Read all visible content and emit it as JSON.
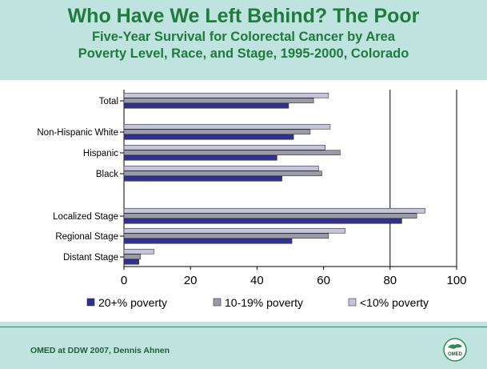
{
  "header": {
    "title": "Who Have We Left Behind?  The Poor",
    "subtitle_line1": "Five-Year Survival for Colorectal Cancer by Area",
    "subtitle_line2": "Poverty Level, Race, and Stage, 1995-2000, Colorado"
  },
  "footer": {
    "text": "OMED at DDW 2007, Dennis Ahnen",
    "logo_text": "OMED"
  },
  "colors": {
    "background": "#bfe3de",
    "title": "#1f7a3d",
    "series_20plus": "#2e3192",
    "series_10_19": "#9a9aa8",
    "series_lt10": "#c4c4dc"
  },
  "chart_data": {
    "type": "bar",
    "orientation": "horizontal",
    "categories": [
      "Total",
      "Non-Hispanic White",
      "Hispanic",
      "Black",
      "Localized Stage",
      "Regional Stage",
      "Distant Stage"
    ],
    "series": [
      {
        "name": "20+% poverty",
        "values": [
          49.5,
          51,
          46,
          47.5,
          83.5,
          50.5,
          4.5
        ]
      },
      {
        "name": "10-19% poverty",
        "values": [
          57,
          56,
          65,
          59.5,
          88,
          61.5,
          5
        ]
      },
      {
        "name": "<10% poverty",
        "values": [
          61.5,
          62,
          60.5,
          58.5,
          90.5,
          66.5,
          9
        ]
      }
    ],
    "xlim": [
      0,
      100
    ],
    "x_ticks": [
      "0",
      "20",
      "40",
      "60",
      "80",
      "100"
    ],
    "gridlines": [
      80,
      100
    ],
    "legend_position": "bottom",
    "title": "",
    "xlabel": "",
    "ylabel": ""
  }
}
